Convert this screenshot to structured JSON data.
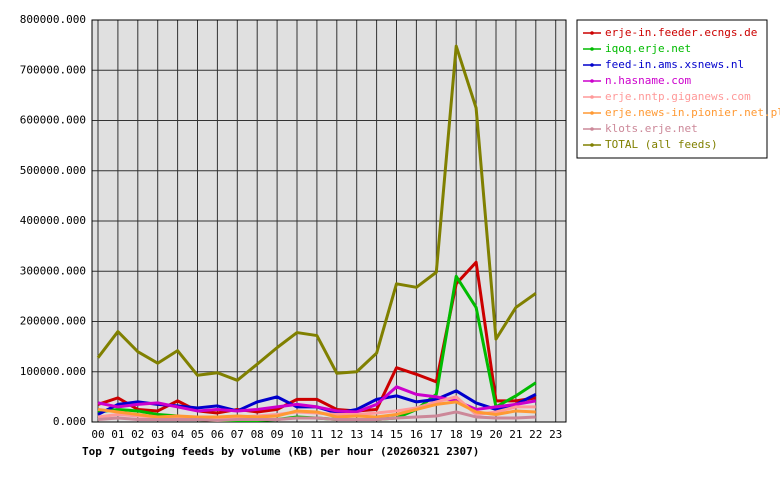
{
  "chart_data": {
    "type": "line",
    "title": "Top 7 outgoing feeds by volume (KB) per hour (20260321 2307)",
    "categories": [
      "00",
      "01",
      "02",
      "03",
      "04",
      "05",
      "06",
      "07",
      "08",
      "09",
      "10",
      "11",
      "12",
      "13",
      "14",
      "15",
      "16",
      "17",
      "18",
      "19",
      "20",
      "21",
      "22",
      "23"
    ],
    "ylim": [
      0,
      800000
    ],
    "yticks": [
      {
        "value": 0,
        "label": "0.000"
      },
      {
        "value": 100000,
        "label": "100000.000"
      },
      {
        "value": 200000,
        "label": "200000.000"
      },
      {
        "value": 300000,
        "label": "300000.000"
      },
      {
        "value": 400000,
        "label": "400000.000"
      },
      {
        "value": 500000,
        "label": "500000.000"
      },
      {
        "value": 600000,
        "label": "600000.000"
      },
      {
        "value": 700000,
        "label": "700000.000"
      },
      {
        "value": 800000,
        "label": "800000.000"
      }
    ],
    "grid": true,
    "legend": "right",
    "series": [
      {
        "name": "erje-in.feeder.ecngs.de",
        "color": "#cc0000",
        "values": [
          35000,
          48000,
          25000,
          22000,
          42000,
          22000,
          18000,
          25000,
          20000,
          25000,
          45000,
          45000,
          25000,
          22000,
          25000,
          108000,
          95000,
          80000,
          275000,
          318000,
          42000,
          42000,
          48000,
          null
        ]
      },
      {
        "name": "iqoq.erje.net",
        "color": "#00bb00",
        "values": [
          20000,
          25000,
          22000,
          15000,
          12000,
          5000,
          3000,
          3000,
          3000,
          5000,
          10000,
          8000,
          5000,
          5000,
          5000,
          8000,
          25000,
          55000,
          290000,
          228000,
          30000,
          52000,
          78000,
          null
        ]
      },
      {
        "name": "feed-in.ams.xsnews.nl",
        "color": "#0000cc",
        "values": [
          15000,
          35000,
          40000,
          35000,
          32000,
          28000,
          32000,
          22000,
          40000,
          50000,
          30000,
          30000,
          18000,
          25000,
          45000,
          52000,
          40000,
          45000,
          62000,
          38000,
          25000,
          35000,
          55000,
          null
        ]
      },
      {
        "name": "n.hasname.com",
        "color": "#cc00cc",
        "values": [
          38000,
          30000,
          35000,
          38000,
          30000,
          22000,
          25000,
          22000,
          25000,
          30000,
          35000,
          30000,
          22000,
          20000,
          35000,
          70000,
          55000,
          50000,
          42000,
          25000,
          30000,
          35000,
          42000,
          null
        ]
      },
      {
        "name": "erje.nntp.giganews.com",
        "color": "#ff9999",
        "values": [
          10000,
          15000,
          12000,
          10000,
          10000,
          10000,
          8000,
          10000,
          12000,
          15000,
          20000,
          18000,
          15000,
          15000,
          18000,
          22000,
          28000,
          40000,
          50000,
          15000,
          20000,
          30000,
          30000,
          null
        ]
      },
      {
        "name": "erje.news-in.pionier.net.pl",
        "color": "#ff9933",
        "values": [
          25000,
          20000,
          15000,
          10000,
          12000,
          10000,
          10000,
          12000,
          10000,
          12000,
          22000,
          20000,
          10000,
          12000,
          10000,
          15000,
          25000,
          35000,
          40000,
          20000,
          15000,
          22000,
          20000,
          null
        ]
      },
      {
        "name": "klots.erje.net",
        "color": "#cc8899",
        "values": [
          5000,
          8000,
          5000,
          5000,
          5000,
          5000,
          3000,
          5000,
          5000,
          5000,
          8000,
          8000,
          5000,
          5000,
          5000,
          8000,
          10000,
          12000,
          20000,
          10000,
          8000,
          8000,
          10000,
          null
        ]
      },
      {
        "name": "TOTAL (all feeds)",
        "color": "#808000",
        "values": [
          128000,
          180000,
          140000,
          117000,
          142000,
          93000,
          98000,
          83000,
          115000,
          148000,
          178000,
          172000,
          97000,
          100000,
          137000,
          275000,
          268000,
          298000,
          748000,
          625000,
          165000,
          228000,
          256000,
          null
        ]
      }
    ]
  }
}
